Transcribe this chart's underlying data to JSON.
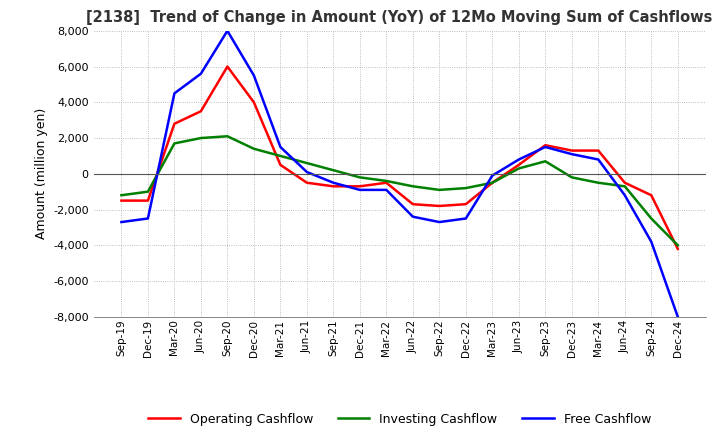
{
  "title": "[2138]  Trend of Change in Amount (YoY) of 12Mo Moving Sum of Cashflows",
  "ylabel": "Amount (million yen)",
  "ylim": [
    -8000,
    8000
  ],
  "yticks": [
    -8000,
    -6000,
    -4000,
    -2000,
    0,
    2000,
    4000,
    6000,
    8000
  ],
  "x_labels": [
    "Sep-19",
    "Dec-19",
    "Mar-20",
    "Jun-20",
    "Sep-20",
    "Dec-20",
    "Mar-21",
    "Jun-21",
    "Sep-21",
    "Dec-21",
    "Mar-22",
    "Jun-22",
    "Sep-22",
    "Dec-22",
    "Mar-23",
    "Jun-23",
    "Sep-23",
    "Dec-23",
    "Mar-24",
    "Jun-24",
    "Sep-24",
    "Dec-24"
  ],
  "operating": [
    -1500,
    -1500,
    2800,
    3500,
    6000,
    4000,
    500,
    -500,
    -700,
    -700,
    -500,
    -1700,
    -1800,
    -1700,
    -500,
    500,
    1600,
    1300,
    1300,
    -500,
    -1200,
    -4200
  ],
  "investing": [
    -1200,
    -1000,
    1700,
    2000,
    2100,
    1400,
    1000,
    600,
    200,
    -200,
    -400,
    -700,
    -900,
    -800,
    -500,
    300,
    700,
    -200,
    -500,
    -700,
    -2500,
    -4000
  ],
  "free": [
    -2700,
    -2500,
    4500,
    5600,
    8000,
    5500,
    1500,
    100,
    -500,
    -900,
    -900,
    -2400,
    -2700,
    -2500,
    -100,
    800,
    1500,
    1100,
    800,
    -1200,
    -3800,
    -8000
  ],
  "operating_color": "#ff0000",
  "investing_color": "#008000",
  "free_color": "#0000ff",
  "bg_color": "#ffffff",
  "grid_color": "#aaaaaa"
}
